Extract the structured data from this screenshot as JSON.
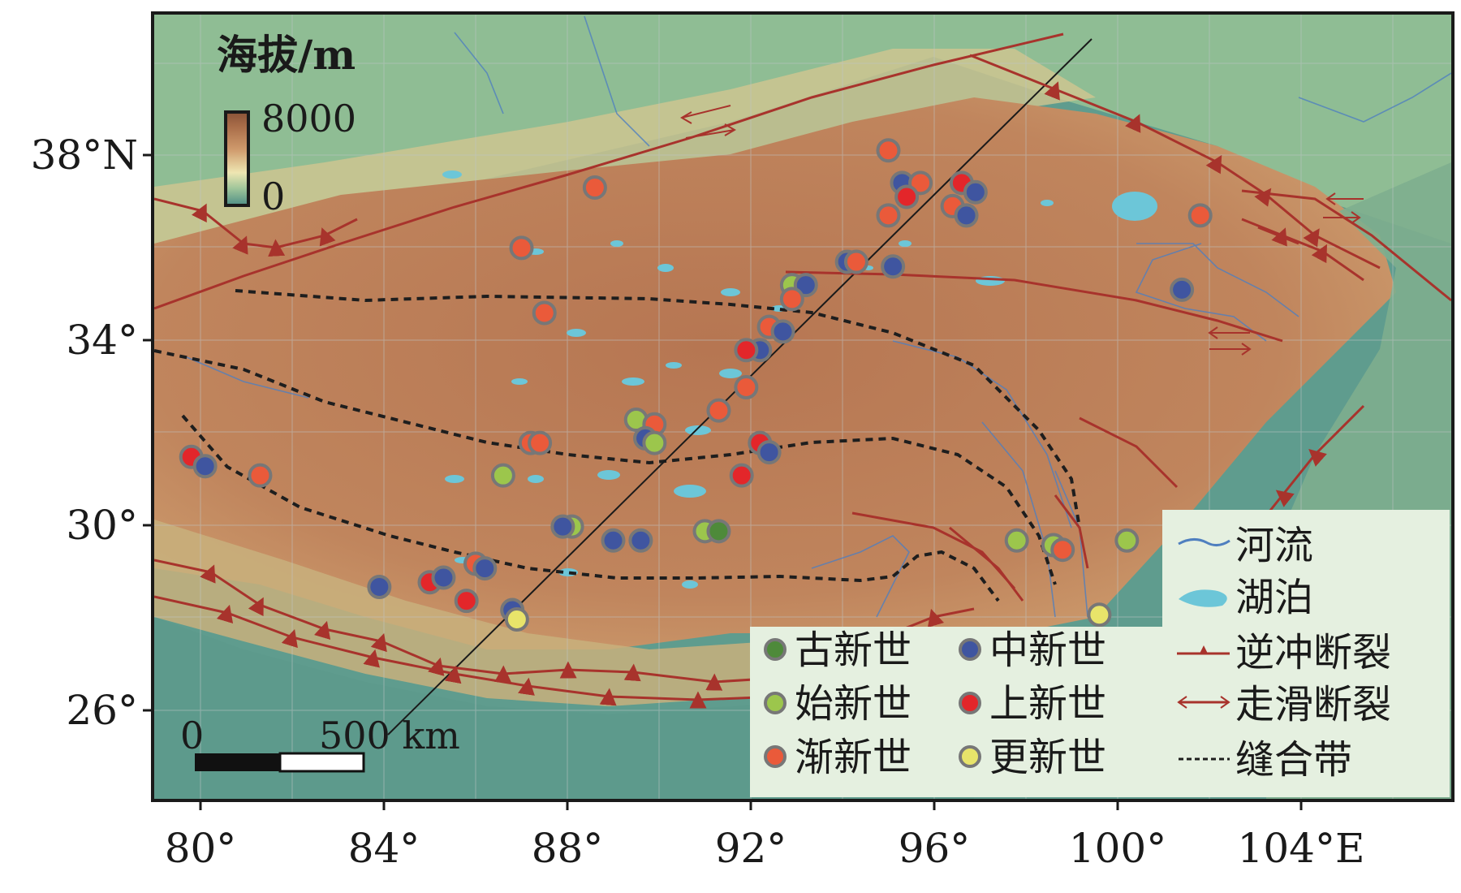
{
  "legend": {
    "elevation_title": "海拔/m",
    "elevation_max": "8000",
    "elevation_min": "0",
    "ages": [
      {
        "key": "paleocene",
        "label": "古新世",
        "color": "#4e8a3a"
      },
      {
        "key": "eocene",
        "label": "始新世",
        "color": "#9cc64c"
      },
      {
        "key": "oligocene",
        "label": "渐新世",
        "color": "#ea5a3a"
      },
      {
        "key": "miocene",
        "label": "中新世",
        "color": "#3f55a0"
      },
      {
        "key": "pliocene",
        "label": "上新世",
        "color": "#e3262a"
      },
      {
        "key": "pleistocene",
        "label": "更新世",
        "color": "#e8e46a"
      }
    ],
    "features": [
      {
        "key": "river",
        "label": "河流"
      },
      {
        "key": "lake",
        "label": "湖泊"
      },
      {
        "key": "thrust",
        "label": "逆冲断裂"
      },
      {
        "key": "strike_slip",
        "label": "走滑断裂"
      },
      {
        "key": "suture",
        "label": "缝合带"
      }
    ]
  },
  "scale_bar": {
    "label_start": "0",
    "label_end": "500 km"
  },
  "axes": {
    "x_ticks": [
      "80°",
      "84°",
      "88°",
      "92°",
      "96°",
      "100°",
      "104°E"
    ],
    "y_ticks": [
      "38°N",
      "34°",
      "30°",
      "26°"
    ]
  },
  "colors": {
    "fault": "#a8332c",
    "suture": "#1e1e1e",
    "lake": "#6cc6d8",
    "river": "#4f7fbf",
    "lowland": "#5f9c8e",
    "highland": "#b87a52"
  },
  "samples": [
    {
      "lon": 88.6,
      "lat": 37.3,
      "age": "oligocene"
    },
    {
      "lon": 87.0,
      "lat": 36.0,
      "age": "oligocene"
    },
    {
      "lon": 87.5,
      "lat": 34.6,
      "age": "oligocene"
    },
    {
      "lon": 95.0,
      "lat": 38.1,
      "age": "oligocene"
    },
    {
      "lon": 95.3,
      "lat": 37.4,
      "age": "miocene"
    },
    {
      "lon": 95.7,
      "lat": 37.4,
      "age": "oligocene"
    },
    {
      "lon": 95.4,
      "lat": 37.1,
      "age": "pliocene"
    },
    {
      "lon": 95.0,
      "lat": 36.7,
      "age": "oligocene"
    },
    {
      "lon": 96.6,
      "lat": 37.4,
      "age": "pliocene"
    },
    {
      "lon": 96.9,
      "lat": 37.2,
      "age": "miocene"
    },
    {
      "lon": 96.4,
      "lat": 36.9,
      "age": "oligocene"
    },
    {
      "lon": 96.7,
      "lat": 36.7,
      "age": "miocene"
    },
    {
      "lon": 101.8,
      "lat": 36.7,
      "age": "oligocene"
    },
    {
      "lon": 94.1,
      "lat": 35.7,
      "age": "miocene"
    },
    {
      "lon": 94.3,
      "lat": 35.7,
      "age": "oligocene"
    },
    {
      "lon": 95.1,
      "lat": 35.6,
      "age": "miocene"
    },
    {
      "lon": 101.4,
      "lat": 35.1,
      "age": "miocene"
    },
    {
      "lon": 92.9,
      "lat": 35.2,
      "age": "eocene"
    },
    {
      "lon": 93.2,
      "lat": 35.2,
      "age": "miocene"
    },
    {
      "lon": 92.9,
      "lat": 34.9,
      "age": "oligocene"
    },
    {
      "lon": 92.4,
      "lat": 34.3,
      "age": "oligocene"
    },
    {
      "lon": 92.7,
      "lat": 34.2,
      "age": "miocene"
    },
    {
      "lon": 92.2,
      "lat": 33.8,
      "age": "miocene"
    },
    {
      "lon": 91.9,
      "lat": 33.8,
      "age": "pliocene"
    },
    {
      "lon": 91.9,
      "lat": 33.0,
      "age": "oligocene"
    },
    {
      "lon": 91.3,
      "lat": 32.5,
      "age": "oligocene"
    },
    {
      "lon": 89.5,
      "lat": 32.3,
      "age": "eocene"
    },
    {
      "lon": 89.9,
      "lat": 32.2,
      "age": "oligocene"
    },
    {
      "lon": 89.7,
      "lat": 31.9,
      "age": "miocene"
    },
    {
      "lon": 89.9,
      "lat": 31.8,
      "age": "eocene"
    },
    {
      "lon": 87.2,
      "lat": 31.8,
      "age": "oligocene"
    },
    {
      "lon": 87.4,
      "lat": 31.8,
      "age": "oligocene"
    },
    {
      "lon": 92.2,
      "lat": 31.8,
      "age": "pliocene"
    },
    {
      "lon": 92.4,
      "lat": 31.6,
      "age": "miocene"
    },
    {
      "lon": 91.8,
      "lat": 31.1,
      "age": "pliocene"
    },
    {
      "lon": 79.8,
      "lat": 31.5,
      "age": "pliocene"
    },
    {
      "lon": 80.1,
      "lat": 31.3,
      "age": "miocene"
    },
    {
      "lon": 81.3,
      "lat": 31.1,
      "age": "oligocene"
    },
    {
      "lon": 86.6,
      "lat": 31.1,
      "age": "eocene"
    },
    {
      "lon": 88.1,
      "lat": 30.0,
      "age": "eocene"
    },
    {
      "lon": 87.9,
      "lat": 30.0,
      "age": "miocene"
    },
    {
      "lon": 89.0,
      "lat": 29.7,
      "age": "miocene"
    },
    {
      "lon": 89.6,
      "lat": 29.7,
      "age": "miocene"
    },
    {
      "lon": 91.0,
      "lat": 29.9,
      "age": "eocene"
    },
    {
      "lon": 91.3,
      "lat": 29.9,
      "age": "paleocene"
    },
    {
      "lon": 97.8,
      "lat": 29.7,
      "age": "eocene"
    },
    {
      "lon": 98.6,
      "lat": 29.6,
      "age": "eocene"
    },
    {
      "lon": 98.8,
      "lat": 29.5,
      "age": "oligocene"
    },
    {
      "lon": 100.2,
      "lat": 29.7,
      "age": "eocene"
    },
    {
      "lon": 86.0,
      "lat": 29.2,
      "age": "oligocene"
    },
    {
      "lon": 86.2,
      "lat": 29.1,
      "age": "miocene"
    },
    {
      "lon": 85.0,
      "lat": 28.8,
      "age": "pliocene"
    },
    {
      "lon": 85.3,
      "lat": 28.9,
      "age": "miocene"
    },
    {
      "lon": 85.8,
      "lat": 28.4,
      "age": "pliocene"
    },
    {
      "lon": 83.9,
      "lat": 28.7,
      "age": "miocene"
    },
    {
      "lon": 86.8,
      "lat": 28.2,
      "age": "miocene"
    },
    {
      "lon": 86.9,
      "lat": 28.0,
      "age": "pleistocene"
    },
    {
      "lon": 99.6,
      "lat": 28.1,
      "age": "pleistocene"
    }
  ]
}
